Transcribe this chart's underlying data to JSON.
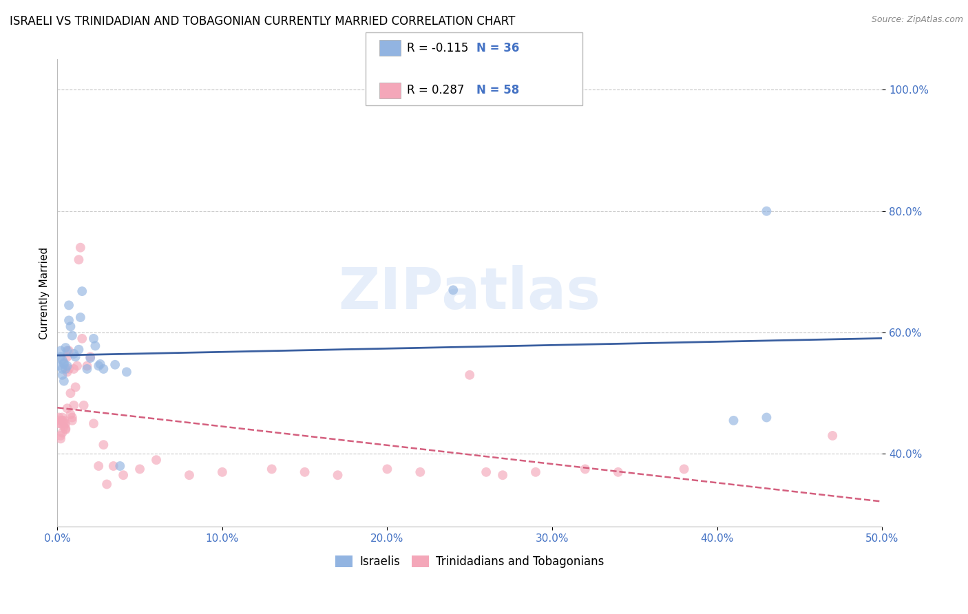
{
  "title": "ISRAELI VS TRINIDADIAN AND TOBAGONIAN CURRENTLY MARRIED CORRELATION CHART",
  "source": "Source: ZipAtlas.com",
  "ylabel": "Currently Married",
  "xlim": [
    0.0,
    0.5
  ],
  "ylim": [
    0.28,
    1.05
  ],
  "xticks": [
    0.0,
    0.1,
    0.2,
    0.3,
    0.4,
    0.5
  ],
  "xtick_labels": [
    "0.0%",
    "10.0%",
    "20.0%",
    "30.0%",
    "40.0%",
    "50.0%"
  ],
  "yticks": [
    0.4,
    0.6,
    0.8,
    1.0
  ],
  "ytick_labels": [
    "40.0%",
    "60.0%",
    "80.0%",
    "100.0%"
  ],
  "ytick_color": "#4472c4",
  "xtick_color": "#4472c4",
  "grid_color": "#c8c8c8",
  "background_color": "#ffffff",
  "watermark_text": "ZIPatlas",
  "color_israeli": "#92b4e1",
  "color_tnt": "#f4a7b9",
  "line_color_israeli": "#3a5fa0",
  "line_color_tnt": "#d45f7e",
  "marker_size": 100,
  "marker_alpha": 0.65,
  "israeli_x": [
    0.001,
    0.002,
    0.002,
    0.003,
    0.003,
    0.003,
    0.004,
    0.004,
    0.004,
    0.005,
    0.005,
    0.006,
    0.006,
    0.007,
    0.007,
    0.008,
    0.009,
    0.01,
    0.011,
    0.013,
    0.014,
    0.015,
    0.018,
    0.02,
    0.022,
    0.023,
    0.025,
    0.026,
    0.028,
    0.035,
    0.038,
    0.042,
    0.24,
    0.41,
    0.43,
    0.43
  ],
  "israeli_y": [
    0.545,
    0.57,
    0.56,
    0.555,
    0.54,
    0.53,
    0.55,
    0.548,
    0.52,
    0.575,
    0.54,
    0.545,
    0.57,
    0.62,
    0.645,
    0.61,
    0.595,
    0.565,
    0.56,
    0.572,
    0.625,
    0.668,
    0.54,
    0.558,
    0.59,
    0.578,
    0.545,
    0.548,
    0.54,
    0.547,
    0.38,
    0.535,
    0.67,
    0.455,
    0.46,
    0.8
  ],
  "tnt_x": [
    0.001,
    0.001,
    0.002,
    0.002,
    0.002,
    0.002,
    0.003,
    0.003,
    0.003,
    0.004,
    0.004,
    0.004,
    0.005,
    0.005,
    0.005,
    0.006,
    0.006,
    0.006,
    0.007,
    0.007,
    0.008,
    0.008,
    0.009,
    0.009,
    0.01,
    0.01,
    0.011,
    0.012,
    0.013,
    0.014,
    0.015,
    0.016,
    0.018,
    0.02,
    0.022,
    0.025,
    0.028,
    0.03,
    0.034,
    0.04,
    0.05,
    0.06,
    0.08,
    0.1,
    0.13,
    0.15,
    0.17,
    0.2,
    0.22,
    0.25,
    0.26,
    0.27,
    0.29,
    0.32,
    0.34,
    0.38,
    0.47
  ],
  "tnt_y": [
    0.45,
    0.46,
    0.43,
    0.425,
    0.455,
    0.45,
    0.435,
    0.455,
    0.46,
    0.45,
    0.445,
    0.455,
    0.44,
    0.442,
    0.45,
    0.475,
    0.535,
    0.56,
    0.57,
    0.54,
    0.5,
    0.465,
    0.46,
    0.455,
    0.48,
    0.54,
    0.51,
    0.545,
    0.72,
    0.74,
    0.59,
    0.48,
    0.545,
    0.56,
    0.45,
    0.38,
    0.415,
    0.35,
    0.38,
    0.365,
    0.375,
    0.39,
    0.365,
    0.37,
    0.375,
    0.37,
    0.365,
    0.375,
    0.37,
    0.53,
    0.37,
    0.365,
    0.37,
    0.375,
    0.37,
    0.375,
    0.43
  ]
}
